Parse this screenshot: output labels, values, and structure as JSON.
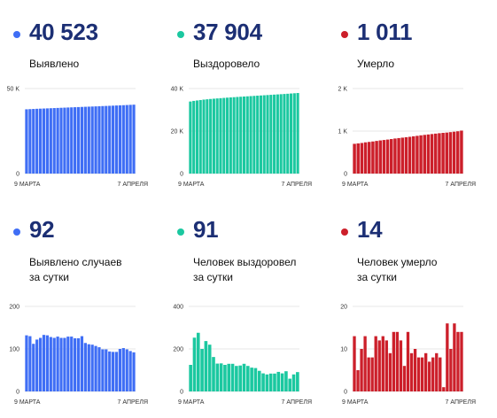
{
  "colors": {
    "blue": "#3f6ef5",
    "teal": "#1bc8a0",
    "red": "#cc1f2a",
    "text": "#1c2f74"
  },
  "panels": [
    {
      "value": "40 523",
      "label_lines": [
        "Выявлено"
      ]
    },
    {
      "value": "37 904",
      "label_lines": [
        "Выздоровело"
      ]
    },
    {
      "value": "1 011",
      "label_lines": [
        "Умерло"
      ]
    },
    {
      "value": "92",
      "label_lines": [
        "Выявлено случаев",
        "за сутки"
      ]
    },
    {
      "value": "91",
      "label_lines": [
        "Человек выздоровел",
        "за сутки"
      ]
    },
    {
      "value": "14",
      "label_lines": [
        "Человек умерло",
        "за сутки"
      ]
    }
  ],
  "chart_data": [
    {
      "type": "bar",
      "color": "blue",
      "x_labels": [
        "9 МАРТА",
        "7 АПРЕЛЯ"
      ],
      "y_ticks": [
        {
          "v": 50000,
          "label": "50 K"
        },
        {
          "v": 0,
          "label": "0"
        }
      ],
      "ylim": [
        0,
        50000
      ],
      "values": [
        37800,
        37900,
        38000,
        38100,
        38180,
        38260,
        38340,
        38430,
        38520,
        38600,
        38690,
        38770,
        38860,
        38940,
        39030,
        39110,
        39200,
        39280,
        39360,
        39440,
        39520,
        39600,
        39700,
        39780,
        39860,
        39950,
        40040,
        40130,
        40220,
        40320,
        40420,
        40523
      ]
    },
    {
      "type": "bar",
      "color": "teal",
      "x_labels": [
        "9 МАРТА",
        "7 АПРЕЛЯ"
      ],
      "y_ticks": [
        {
          "v": 40000,
          "label": "40 K"
        },
        {
          "v": 20000,
          "label": "20 K"
        },
        {
          "v": 0,
          "label": "0"
        }
      ],
      "ylim": [
        0,
        40000
      ],
      "values": [
        33900,
        34200,
        34400,
        34600,
        34800,
        34950,
        35100,
        35230,
        35360,
        35480,
        35600,
        35720,
        35830,
        35940,
        36050,
        36150,
        36250,
        36350,
        36450,
        36550,
        36650,
        36750,
        36850,
        36950,
        37050,
        37150,
        37250,
        37350,
        37450,
        37560,
        37680,
        37790,
        37904
      ]
    },
    {
      "type": "bar",
      "color": "red",
      "x_labels": [
        "9 МАРТА",
        "7 АПРЕЛЯ"
      ],
      "y_ticks": [
        {
          "v": 2000,
          "label": "2 K"
        },
        {
          "v": 1000,
          "label": "1 K"
        },
        {
          "v": 0,
          "label": "0"
        }
      ],
      "ylim": [
        0,
        2000
      ],
      "values": [
        700,
        710,
        720,
        735,
        745,
        755,
        768,
        780,
        790,
        800,
        812,
        825,
        835,
        845,
        855,
        865,
        877,
        888,
        900,
        910,
        920,
        930,
        940,
        950,
        958,
        965,
        975,
        985,
        995,
        1011
      ]
    },
    {
      "type": "bar",
      "color": "blue",
      "x_labels": [
        "9 МАРТА",
        "7 АПРЕЛЯ"
      ],
      "y_ticks": [
        {
          "v": 200,
          "label": "200"
        },
        {
          "v": 100,
          "label": "100"
        },
        {
          "v": 0,
          "label": "0"
        }
      ],
      "ylim": [
        0,
        200
      ],
      "values": [
        132,
        130,
        112,
        122,
        126,
        133,
        132,
        128,
        126,
        129,
        126,
        126,
        129,
        129,
        125,
        125,
        130,
        114,
        111,
        110,
        107,
        104,
        99,
        99,
        94,
        93,
        93,
        100,
        102,
        99,
        95,
        92
      ]
    },
    {
      "type": "bar",
      "color": "teal",
      "x_labels": [
        "9 МАРТА",
        "7 АПРЕЛЯ"
      ],
      "y_ticks": [
        {
          "v": 400,
          "label": "400"
        },
        {
          "v": 200,
          "label": "200"
        },
        {
          "v": 0,
          "label": "0"
        }
      ],
      "ylim": [
        0,
        400
      ],
      "values": [
        125,
        253,
        276,
        200,
        237,
        220,
        162,
        131,
        132,
        125,
        130,
        130,
        120,
        122,
        130,
        120,
        112,
        110,
        97,
        85,
        80,
        84,
        84,
        92,
        85,
        95,
        60,
        80,
        91
      ]
    },
    {
      "type": "bar",
      "color": "red",
      "x_labels": [
        "9 МАРТА",
        "7 АПРЕЛЯ"
      ],
      "y_ticks": [
        {
          "v": 20,
          "label": "20"
        },
        {
          "v": 10,
          "label": "10"
        },
        {
          "v": 0,
          "label": "0"
        }
      ],
      "ylim": [
        0,
        20
      ],
      "values": [
        13,
        5,
        10,
        13,
        8,
        8,
        13,
        12,
        13,
        12,
        9,
        14,
        14,
        12,
        6,
        14,
        9,
        10,
        8,
        8,
        9,
        7,
        8,
        9,
        8,
        1,
        16,
        10,
        16,
        14,
        14
      ]
    }
  ]
}
